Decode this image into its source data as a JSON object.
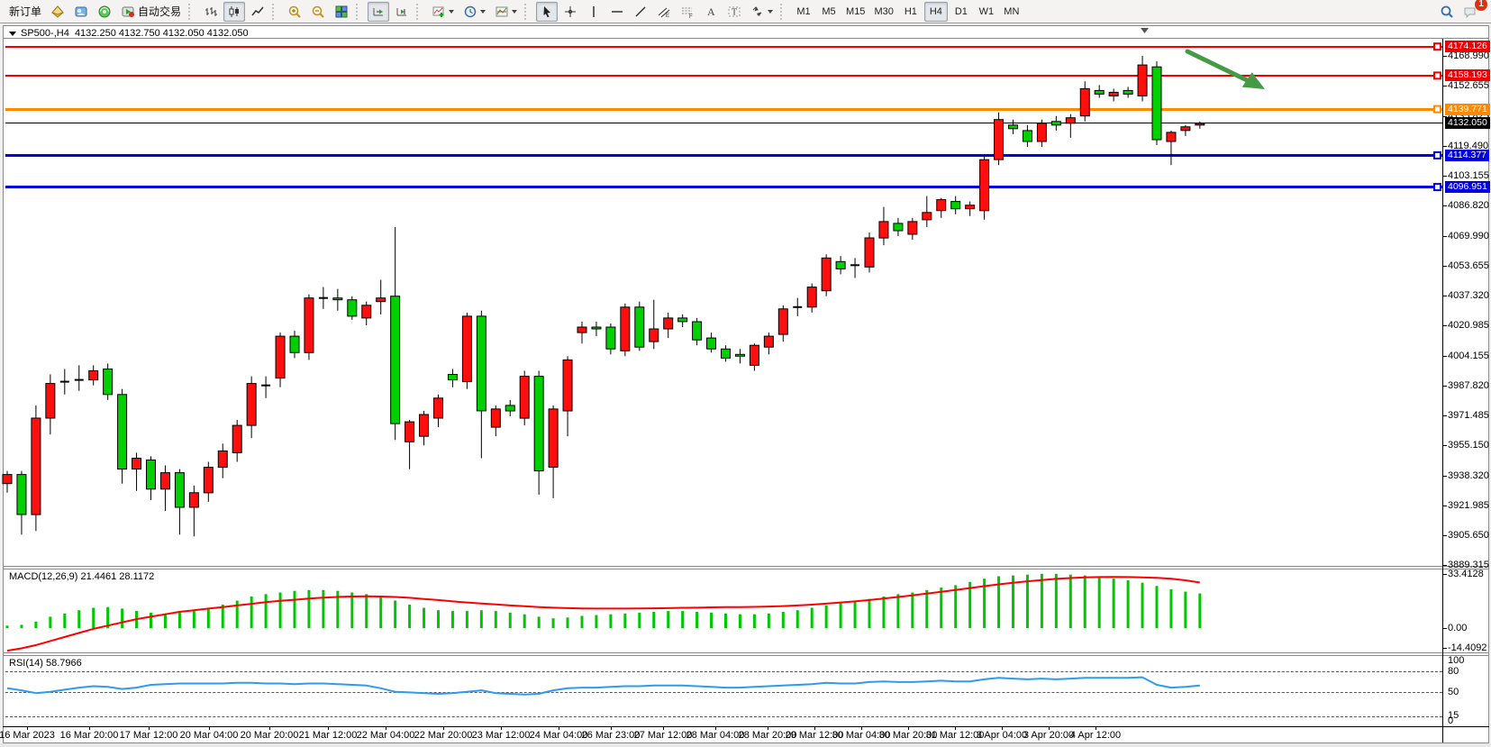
{
  "toolbar": {
    "new_order_label": "新订单",
    "auto_trading_label": "自动交易",
    "items": [
      {
        "name": "new-order-button",
        "label": "新订单"
      },
      {
        "name": "market-watch-icon",
        "icon": "marketwatch"
      },
      {
        "name": "data-window-icon",
        "icon": "datawindow"
      },
      {
        "name": "navigator-icon",
        "icon": "navigator"
      },
      {
        "name": "auto-trading-button",
        "icon": "autotrade",
        "label": "自动交易"
      },
      {
        "sep": true
      },
      {
        "name": "bar-chart-icon",
        "icon": "barchart"
      },
      {
        "name": "candlestick-chart-icon",
        "icon": "candles",
        "pressed": true
      },
      {
        "name": "line-chart-icon",
        "icon": "linechart"
      },
      {
        "sep": true
      },
      {
        "name": "zoom-in-icon",
        "icon": "zoomin"
      },
      {
        "name": "zoom-out-icon",
        "icon": "zoomout"
      },
      {
        "name": "tile-windows-icon",
        "icon": "tiles"
      },
      {
        "sep": true
      },
      {
        "name": "auto-scroll-icon",
        "icon": "autoscroll",
        "pressed": true
      },
      {
        "name": "chart-shift-icon",
        "icon": "chartshift"
      },
      {
        "sep": true
      },
      {
        "name": "indicators-icon",
        "icon": "indicators",
        "caret": true
      },
      {
        "name": "periods-icon",
        "icon": "clock",
        "caret": true
      },
      {
        "name": "templates-icon",
        "icon": "template",
        "caret": true
      },
      {
        "sep": true
      },
      {
        "name": "cursor-icon",
        "icon": "cursor",
        "pressed": true
      },
      {
        "name": "crosshair-icon",
        "icon": "crosshair"
      },
      {
        "name": "vertical-line-icon",
        "icon": "vline"
      },
      {
        "name": "horizontal-line-icon",
        "icon": "hline"
      },
      {
        "name": "trendline-icon",
        "icon": "trendline"
      },
      {
        "name": "channel-icon",
        "icon": "channel"
      },
      {
        "name": "fibonacci-icon",
        "icon": "fibo"
      },
      {
        "name": "text-icon",
        "icon": "text"
      },
      {
        "name": "label-icon",
        "icon": "label"
      },
      {
        "name": "arrows-icon",
        "icon": "arrows",
        "caret": true
      }
    ],
    "timeframes": [
      "M1",
      "M5",
      "M15",
      "M30",
      "H1",
      "H4",
      "D1",
      "W1",
      "MN"
    ],
    "active_timeframe": "H4",
    "right_items": [
      {
        "name": "search-icon",
        "icon": "search"
      },
      {
        "name": "notifications-icon",
        "icon": "chat",
        "badge": "1"
      }
    ]
  },
  "chart": {
    "symbol_period": "SP500-,H4",
    "ohlc_line": "4132.250 4132.750 4132.050 4132.050"
  },
  "price_axis": {
    "ticks": [
      4168.99,
      4152.655,
      4135.825,
      4119.49,
      4103.155,
      4086.82,
      4069.99,
      4053.655,
      4037.32,
      4020.985,
      4004.155,
      3987.82,
      3971.485,
      3955.15,
      3938.32,
      3921.985,
      3905.65,
      3889.315
    ]
  },
  "time_axis": {
    "labels": [
      "16 Mar 2023",
      "16 Mar 20:00",
      "17 Mar 12:00",
      "20 Mar 04:00",
      "20 Mar 20:00",
      "21 Mar 12:00",
      "22 Mar 04:00",
      "22 Mar 20:00",
      "23 Mar 12:00",
      "24 Mar 04:00",
      "26 Mar 23:00",
      "27 Mar 12:00",
      "28 Mar 04:00",
      "28 Mar 20:00",
      "29 Mar 12:00",
      "30 Mar 04:00",
      "30 Mar 20:00",
      "31 Mar 12:00",
      "3 Apr 04:00",
      "3 Apr 20:00",
      "4 Apr 12:00"
    ]
  },
  "indicator_labels": {
    "macd_label": "MACD(12,26,9) 21.4461 28.1172",
    "macd_axis": [
      "33.4128",
      "0.00",
      "-14.4092"
    ],
    "rsi_label": "RSI(14) 58.7966",
    "rsi_axis": [
      "100",
      "80",
      "50",
      "15",
      "0"
    ]
  },
  "chart_data": {
    "type": "candlestick",
    "title": "SP500-,H4",
    "symbol": "SP500-",
    "timeframe": "H4",
    "current_bar": {
      "open": 4132.25,
      "high": 4132.75,
      "low": 4132.05,
      "close": 4132.05
    },
    "current_price": 4132.05,
    "bull_color": "#ff0e0e",
    "bear_color": "#00cf00",
    "ylim": [
      3889.315,
      4180.0
    ],
    "x_labels": [
      "16 Mar 2023",
      "16 Mar 20:00",
      "17 Mar 12:00",
      "20 Mar 04:00",
      "20 Mar 20:00",
      "21 Mar 12:00",
      "22 Mar 04:00",
      "22 Mar 20:00",
      "23 Mar 12:00",
      "24 Mar 04:00",
      "26 Mar 23:00",
      "27 Mar 12:00",
      "28 Mar 04:00",
      "28 Mar 20:00",
      "29 Mar 12:00",
      "30 Mar 04:00",
      "30 Mar 20:00",
      "31 Mar 12:00",
      "3 Apr 04:00",
      "3 Apr 20:00",
      "4 Apr 12:00"
    ],
    "candles": [
      [
        3934,
        3941,
        3929,
        3939
      ],
      [
        3939,
        3941,
        3906,
        3917
      ],
      [
        3917,
        3977,
        3908,
        3970
      ],
      [
        3970,
        3994,
        3961,
        3989
      ],
      [
        3990,
        3997,
        3983,
        3990
      ],
      [
        3991,
        3999,
        3985,
        3991
      ],
      [
        3991,
        3999,
        3988,
        3996
      ],
      [
        3997,
        4000,
        3980,
        3983
      ],
      [
        3983,
        3986,
        3934,
        3942
      ],
      [
        3942,
        3951,
        3930,
        3948
      ],
      [
        3947,
        3949,
        3925,
        3931
      ],
      [
        3931,
        3944,
        3919,
        3940
      ],
      [
        3940,
        3942,
        3906,
        3921
      ],
      [
        3921,
        3933,
        3905,
        3929
      ],
      [
        3929,
        3946,
        3924,
        3943
      ],
      [
        3943,
        3956,
        3937,
        3952
      ],
      [
        3951,
        3969,
        3946,
        3966
      ],
      [
        3966,
        3993,
        3959,
        3989
      ],
      [
        3988,
        3993,
        3981,
        3988
      ],
      [
        3992,
        4017,
        3987,
        4015
      ],
      [
        4015,
        4018,
        4003,
        4006
      ],
      [
        4006,
        4038,
        4002,
        4036
      ],
      [
        4036,
        4042,
        4030,
        4036
      ],
      [
        4036,
        4041,
        4029,
        4035
      ],
      [
        4035,
        4037,
        4024,
        4026
      ],
      [
        4025,
        4034,
        4021,
        4032
      ],
      [
        4034,
        4046,
        4027,
        4036
      ],
      [
        4037,
        4075,
        3958,
        3967
      ],
      [
        3957,
        3969,
        3942,
        3968
      ],
      [
        3960,
        3974,
        3955,
        3972
      ],
      [
        3970,
        3983,
        3965,
        3981
      ],
      [
        3994,
        3997,
        3987,
        3991
      ],
      [
        3990,
        4028,
        3986,
        4026
      ],
      [
        4026,
        4029,
        3948,
        3974
      ],
      [
        3965,
        3977,
        3960,
        3975
      ],
      [
        3977,
        3980,
        3971,
        3974
      ],
      [
        3970,
        3996,
        3966,
        3993
      ],
      [
        3993,
        3996,
        3928,
        3941
      ],
      [
        3943,
        3977,
        3926,
        3975
      ],
      [
        3974,
        4004,
        3960,
        4002
      ],
      [
        4017,
        4023,
        4011,
        4020
      ],
      [
        4020,
        4023,
        4015,
        4019
      ],
      [
        4020,
        4022,
        4005,
        4008
      ],
      [
        4007,
        4033,
        4004,
        4031
      ],
      [
        4031,
        4034,
        4007,
        4009
      ],
      [
        4012,
        4035,
        4008,
        4019
      ],
      [
        4019,
        4028,
        4014,
        4025
      ],
      [
        4025,
        4027,
        4020,
        4023
      ],
      [
        4023,
        4025,
        4010,
        4013
      ],
      [
        4014,
        4017,
        4006,
        4008
      ],
      [
        4008,
        4010,
        4001,
        4003
      ],
      [
        4005,
        4008,
        4000,
        4004
      ],
      [
        3999,
        4011,
        3996,
        4010
      ],
      [
        4009,
        4017,
        4005,
        4015
      ],
      [
        4016,
        4032,
        4012,
        4030
      ],
      [
        4031,
        4036,
        4026,
        4031
      ],
      [
        4031,
        4044,
        4028,
        4042
      ],
      [
        4040,
        4060,
        4037,
        4058
      ],
      [
        4056,
        4059,
        4049,
        4052
      ],
      [
        4054,
        4058,
        4047,
        4054
      ],
      [
        4053,
        4072,
        4050,
        4069
      ],
      [
        4069,
        4086,
        4065,
        4078
      ],
      [
        4077,
        4080,
        4070,
        4073
      ],
      [
        4071,
        4080,
        4068,
        4078
      ],
      [
        4079,
        4092,
        4075,
        4083
      ],
      [
        4084,
        4091,
        4080,
        4090
      ],
      [
        4089,
        4092,
        4082,
        4085
      ],
      [
        4085,
        4089,
        4081,
        4087
      ],
      [
        4084,
        4114,
        4079,
        4112
      ],
      [
        4112,
        4138,
        4109,
        4134
      ],
      [
        4131,
        4134,
        4126,
        4129
      ],
      [
        4128,
        4131,
        4119,
        4122
      ],
      [
        4122,
        4134,
        4119,
        4132
      ],
      [
        4133,
        4136,
        4128,
        4131
      ],
      [
        4132,
        4137,
        4124,
        4135
      ],
      [
        4136,
        4155,
        4133,
        4151
      ],
      [
        4150,
        4153,
        4146,
        4148
      ],
      [
        4147,
        4151,
        4144,
        4149
      ],
      [
        4150,
        4152,
        4146,
        4148
      ],
      [
        4147,
        4169,
        4144,
        4164
      ],
      [
        4163,
        4166,
        4120,
        4123
      ],
      [
        4122,
        4128,
        4109,
        4127
      ],
      [
        4128,
        4131,
        4125,
        4130
      ],
      [
        4131,
        4133,
        4129,
        4132
      ]
    ],
    "hlines": [
      {
        "price": 4174.126,
        "color": "#ee0000",
        "width": 2,
        "label": "4174.126"
      },
      {
        "price": 4158.193,
        "color": "#ee0000",
        "width": 2,
        "label": "4158.193"
      },
      {
        "price": 4139.771,
        "color": "#ff8a00",
        "width": 3,
        "label": "4139.771"
      },
      {
        "price": 4132.05,
        "color": "#000000",
        "width": 1,
        "label": "4132.050",
        "current": true
      },
      {
        "price": 4114.377,
        "color": "#0000dd",
        "width": 3,
        "label": "4114.377"
      },
      {
        "price": 4096.951,
        "color": "#0000dd",
        "width": 3,
        "label": "4096.951"
      }
    ],
    "annotations": [
      {
        "name": "down-right-arrow",
        "shape": "arrow",
        "color": "#459a45"
      }
    ],
    "macd": {
      "label": "MACD(12,26,9) 21.4461 28.1172",
      "main_value": 21.4461,
      "signal_value": 28.1172,
      "axis_range": [
        -14.4092,
        33.4128
      ],
      "histogram_color": "#00c800",
      "signal_color": "#ff0000",
      "histogram": [
        1.5,
        2,
        4,
        7,
        9,
        11,
        12.5,
        13,
        12,
        10.5,
        9.5,
        9,
        9.5,
        10.5,
        12,
        14.5,
        17,
        19.5,
        21,
        22,
        23,
        23.5,
        23.5,
        23,
        22,
        21,
        19.5,
        17,
        14.5,
        12.5,
        11,
        10.5,
        10.5,
        11,
        10.5,
        9.5,
        8.5,
        7,
        6,
        6.5,
        7.5,
        8,
        8.5,
        9,
        9.5,
        10,
        10.5,
        10.5,
        10,
        9.5,
        9,
        8.5,
        8.5,
        9,
        10,
        11,
        12.5,
        14,
        15.5,
        16.5,
        18,
        19.5,
        21,
        22,
        23.5,
        25,
        26.5,
        28.5,
        30.5,
        32,
        32.5,
        33,
        33.5,
        33.5,
        33,
        32.5,
        31.5,
        30.5,
        29.5,
        28,
        26,
        24,
        22.5,
        21.4
      ],
      "signal": [
        -14,
        -12.5,
        -10.5,
        -8,
        -5.5,
        -3,
        -0.5,
        1.5,
        3.5,
        5.5,
        7,
        8.5,
        10,
        11,
        12,
        13,
        14,
        15,
        16,
        16.8,
        17.5,
        18.2,
        18.8,
        19.2,
        19.5,
        19.6,
        19.5,
        19.2,
        18.7,
        18,
        17.3,
        16.5,
        15.8,
        15.2,
        14.6,
        14,
        13.5,
        13,
        12.6,
        12.3,
        12.1,
        12,
        12,
        12,
        12.1,
        12.2,
        12.3,
        12.5,
        12.6,
        12.8,
        12.9,
        13,
        13.1,
        13.3,
        13.6,
        14,
        14.5,
        15.1,
        15.8,
        16.5,
        17.3,
        18.2,
        19.2,
        20.2,
        21.3,
        22.4,
        23.5,
        24.7,
        25.9,
        27,
        28,
        28.9,
        29.7,
        30.4,
        30.9,
        31.3,
        31.5,
        31.6,
        31.5,
        31.3,
        31,
        30.5,
        29.5,
        28.1
      ]
    },
    "rsi": {
      "label": "RSI(14) 58.7966",
      "value": 58.7966,
      "levels": [
        80,
        50,
        15
      ],
      "line_color": "#2f9bea",
      "values": [
        55,
        52,
        48,
        50,
        53,
        56,
        58,
        57,
        54,
        56,
        60,
        61,
        62,
        62,
        62,
        62,
        63,
        63,
        62,
        62,
        61,
        62,
        62,
        61,
        60,
        59,
        55,
        50,
        49,
        48,
        47,
        48,
        50,
        52,
        48,
        47,
        46,
        47,
        52,
        55,
        56,
        56,
        57,
        58,
        58,
        59,
        59,
        59,
        58,
        57,
        56,
        56,
        57,
        58,
        59,
        60,
        61,
        63,
        62,
        62,
        64,
        65,
        64,
        64,
        65,
        66,
        65,
        65,
        68,
        70,
        69,
        68,
        69,
        68,
        69,
        70,
        70,
        70,
        70,
        71,
        60,
        56,
        57,
        59
      ]
    }
  }
}
